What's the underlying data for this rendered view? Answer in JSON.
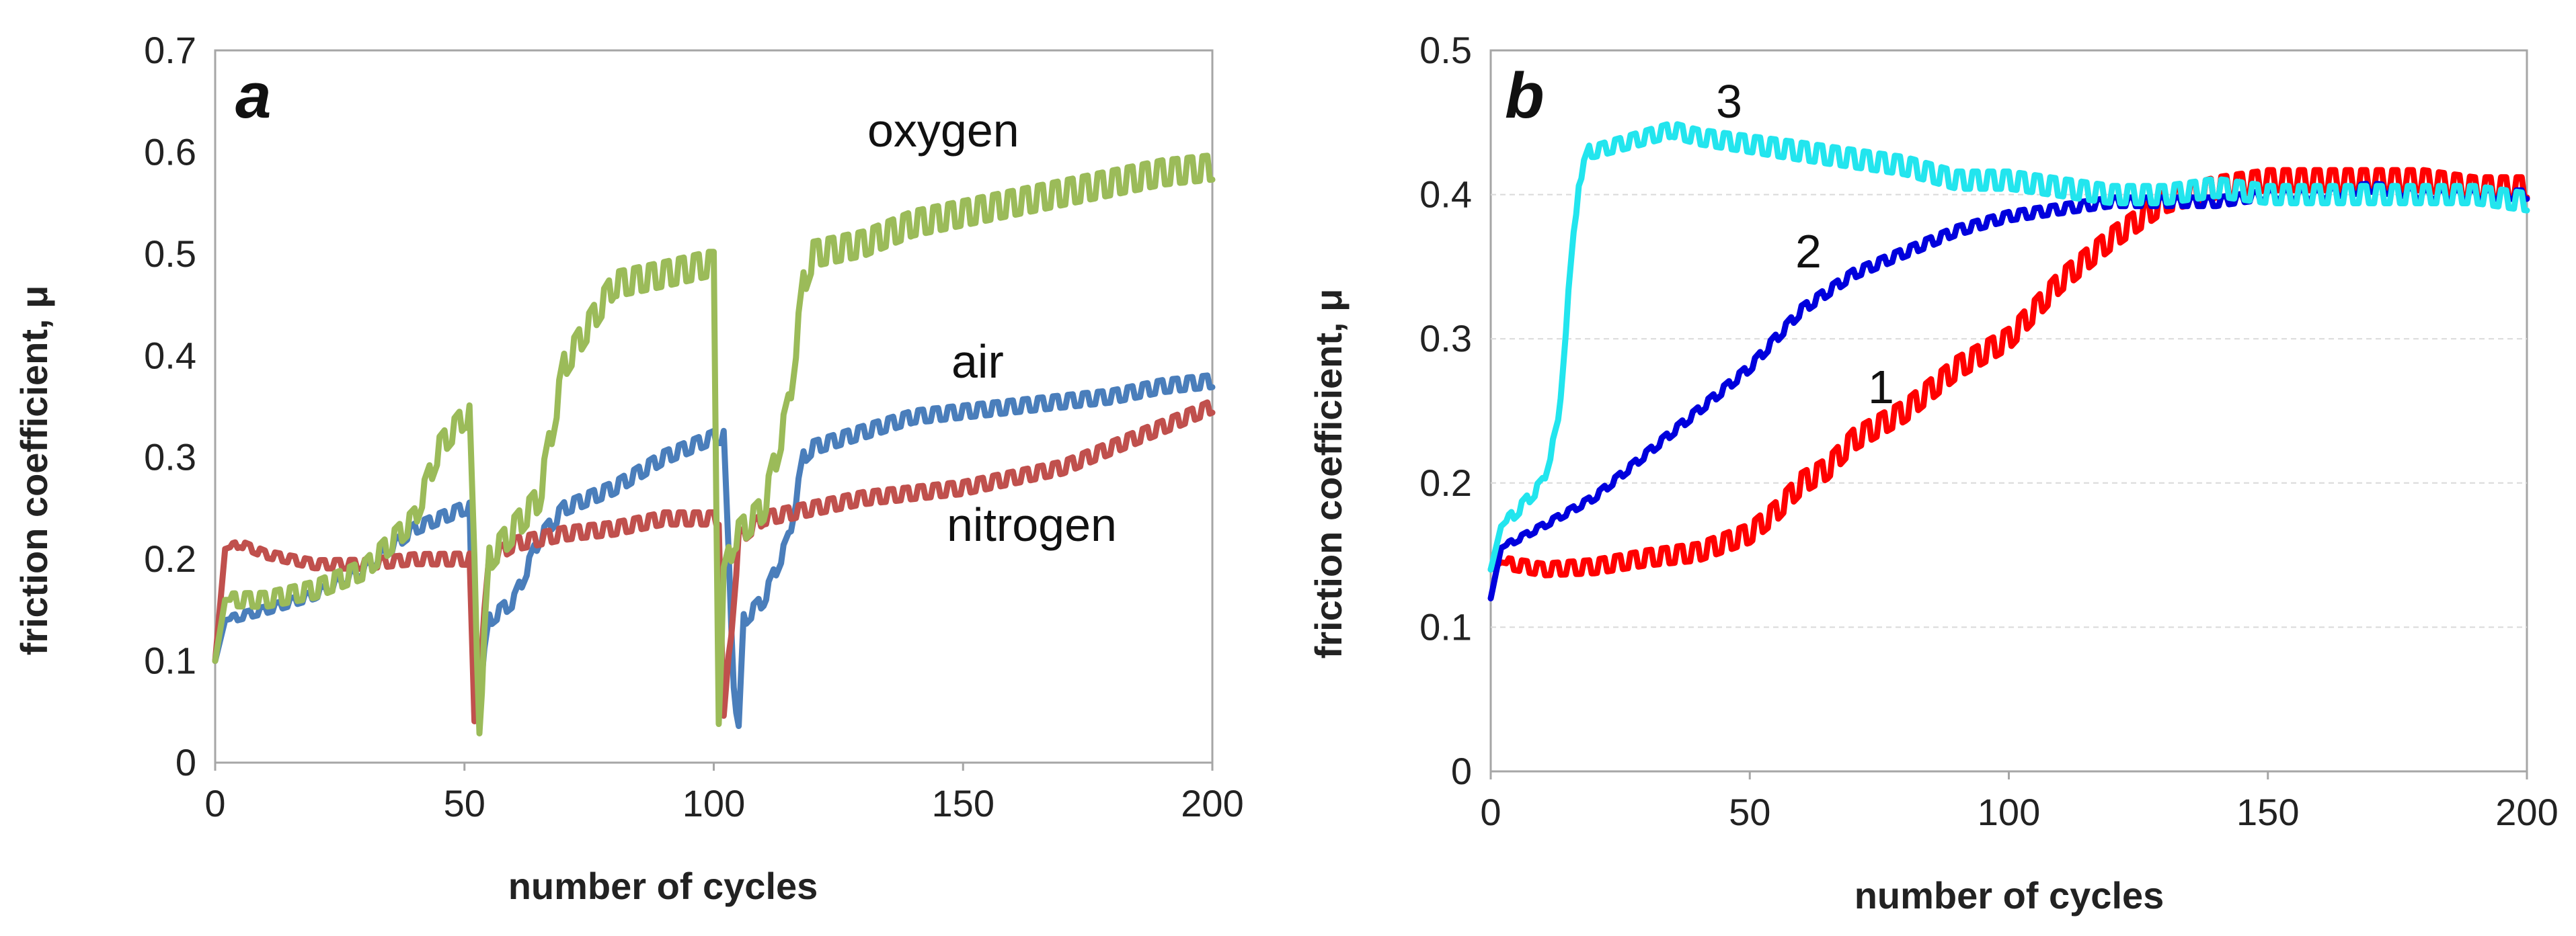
{
  "chart_data": [
    {
      "type": "line",
      "panel": "a",
      "xlabel": "number of cycles",
      "ylabel": "friction coefficient, μ",
      "xlim": [
        0,
        200
      ],
      "ylim": [
        0,
        0.7
      ],
      "xticks": [
        "0",
        "50",
        "100",
        "150",
        "200"
      ],
      "yticks": [
        "0",
        "0.1",
        "0.2",
        "0.3",
        "0.4",
        "0.5",
        "0.6",
        "0.7"
      ],
      "grid": false,
      "annotations": [
        "oxygen",
        "air",
        "nitrogen"
      ],
      "series": [
        {
          "name": "air",
          "color": "#4a7ebb",
          "osc": 0.006,
          "x": [
            0,
            2,
            10,
            20,
            30,
            40,
            50,
            51,
            52,
            55,
            60,
            65,
            70,
            80,
            90,
            100,
            102,
            104,
            105,
            106,
            110,
            115,
            118,
            120,
            130,
            140,
            150,
            160,
            170,
            180,
            190,
            200
          ],
          "y": [
            0.1,
            0.14,
            0.15,
            0.165,
            0.19,
            0.23,
            0.25,
            0.25,
            0.04,
            0.14,
            0.16,
            0.22,
            0.25,
            0.27,
            0.3,
            0.32,
            0.32,
            0.08,
            0.03,
            0.14,
            0.16,
            0.22,
            0.3,
            0.31,
            0.325,
            0.34,
            0.345,
            0.35,
            0.355,
            0.36,
            0.37,
            0.375
          ]
        },
        {
          "name": "nitrogen",
          "color": "#c0504d",
          "osc": 0.006,
          "x": [
            0,
            2,
            5,
            10,
            20,
            30,
            40,
            50,
            51,
            52,
            55,
            60,
            70,
            80,
            90,
            100,
            101,
            102,
            105,
            110,
            120,
            130,
            140,
            150,
            160,
            170,
            180,
            190,
            200
          ],
          "y": [
            0.1,
            0.21,
            0.215,
            0.205,
            0.195,
            0.195,
            0.2,
            0.2,
            0.2,
            0.035,
            0.2,
            0.215,
            0.225,
            0.23,
            0.24,
            0.24,
            0.24,
            0.04,
            0.22,
            0.24,
            0.25,
            0.26,
            0.265,
            0.27,
            0.28,
            0.29,
            0.31,
            0.33,
            0.35
          ]
        },
        {
          "name": "oxygen",
          "color": "#9bbb59",
          "osc": 0.012,
          "x": [
            0,
            2,
            10,
            20,
            30,
            40,
            45,
            50,
            51,
            53,
            55,
            60,
            65,
            70,
            80,
            90,
            99,
            100,
            101,
            102,
            104,
            106,
            110,
            115,
            118,
            120,
            130,
            140,
            150,
            160,
            170,
            180,
            190,
            200
          ],
          "y": [
            0.1,
            0.16,
            0.16,
            0.17,
            0.19,
            0.24,
            0.31,
            0.34,
            0.34,
            0.04,
            0.2,
            0.23,
            0.26,
            0.39,
            0.47,
            0.48,
            0.49,
            0.49,
            0.05,
            0.18,
            0.22,
            0.23,
            0.25,
            0.35,
            0.47,
            0.5,
            0.51,
            0.53,
            0.54,
            0.55,
            0.56,
            0.57,
            0.58,
            0.585
          ]
        }
      ]
    },
    {
      "type": "line",
      "panel": "b",
      "xlabel": "number of cycles",
      "ylabel": "friction coefficient, μ",
      "xlim": [
        0,
        200
      ],
      "ylim": [
        0,
        0.5
      ],
      "xticks": [
        "0",
        "50",
        "100",
        "150",
        "200"
      ],
      "yticks": [
        "0",
        "0.1",
        "0.2",
        "0.3",
        "0.4",
        "0.5"
      ],
      "grid": true,
      "annotations": [
        "3",
        "2",
        "1"
      ],
      "series": [
        {
          "name": "1",
          "color": "#ff0000",
          "osc": 0.007,
          "x": [
            0,
            2,
            10,
            20,
            30,
            40,
            50,
            55,
            60,
            65,
            70,
            75,
            80,
            90,
            100,
            110,
            120,
            130,
            140,
            150,
            160,
            170,
            180,
            190,
            200
          ],
          "y": [
            0.14,
            0.145,
            0.14,
            0.142,
            0.148,
            0.152,
            0.165,
            0.18,
            0.2,
            0.21,
            0.23,
            0.24,
            0.25,
            0.28,
            0.3,
            0.34,
            0.37,
            0.395,
            0.405,
            0.41,
            0.41,
            0.41,
            0.41,
            0.405,
            0.405
          ]
        },
        {
          "name": "2",
          "color": "#0000dd",
          "osc": 0.003,
          "x": [
            0,
            2,
            10,
            20,
            30,
            40,
            50,
            60,
            70,
            80,
            90,
            100,
            110,
            120,
            130,
            140,
            150,
            160,
            170,
            180,
            190,
            200
          ],
          "y": [
            0.12,
            0.155,
            0.17,
            0.19,
            0.22,
            0.25,
            0.28,
            0.32,
            0.345,
            0.36,
            0.375,
            0.385,
            0.39,
            0.395,
            0.395,
            0.395,
            0.4,
            0.4,
            0.405,
            0.4,
            0.4,
            0.4
          ]
        },
        {
          "name": "3",
          "color": "#22e5ee",
          "osc": 0.006,
          "x": [
            0,
            2,
            5,
            10,
            13,
            15,
            17,
            19,
            20,
            25,
            30,
            35,
            40,
            50,
            60,
            70,
            80,
            90,
            100,
            110,
            120,
            130,
            140,
            150,
            160,
            170,
            180,
            190,
            200
          ],
          "y": [
            0.14,
            0.17,
            0.18,
            0.2,
            0.24,
            0.33,
            0.41,
            0.43,
            0.43,
            0.435,
            0.44,
            0.445,
            0.44,
            0.435,
            0.43,
            0.425,
            0.42,
            0.41,
            0.41,
            0.405,
            0.4,
            0.4,
            0.405,
            0.4,
            0.4,
            0.4,
            0.4,
            0.4,
            0.395
          ]
        }
      ]
    }
  ]
}
